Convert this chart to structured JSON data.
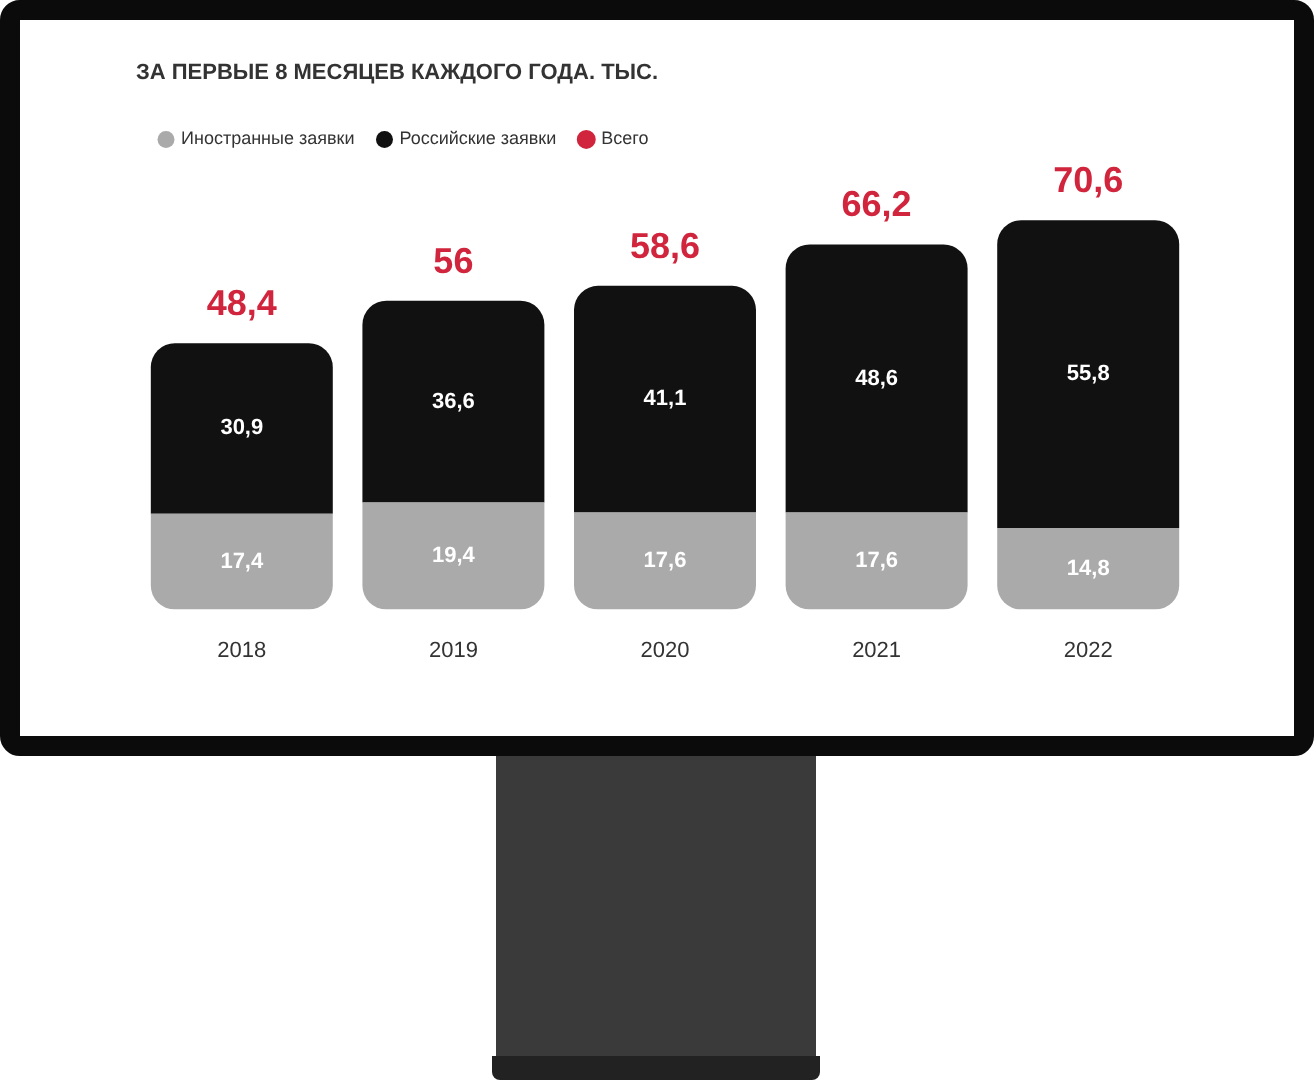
{
  "chart_data": {
    "type": "bar",
    "title": "ЗА ПЕРВЫЕ 8 МЕСЯЦЕВ КАЖДОГО ГОДА. ТЫС.",
    "categories": [
      "2018",
      "2019",
      "2020",
      "2021",
      "2022"
    ],
    "stacked": true,
    "legend": "top left",
    "grid": false,
    "tick_labels": "x",
    "data_labels": true,
    "series": [
      {
        "name": "Иностранные заявки",
        "color": "#aaaaaa",
        "values": [
          17.4,
          19.4,
          17.6,
          17.6,
          14.8
        ],
        "value_labels": [
          "17,4",
          "19,4",
          "17,6",
          "17,6",
          "14,8"
        ]
      },
      {
        "name": "Российские заявки",
        "color": "#111111",
        "values": [
          30.9,
          36.6,
          41.1,
          48.6,
          55.8
        ],
        "value_labels": [
          "30,9",
          "36,6",
          "41,1",
          "48,6",
          "55,8"
        ]
      },
      {
        "name": "Всего",
        "color": "#d0253c",
        "values": [
          null,
          null,
          null,
          null,
          null
        ]
      }
    ],
    "totals": [
      "48,4",
      "56",
      "58,6",
      "66,2",
      "70,6"
    ]
  }
}
